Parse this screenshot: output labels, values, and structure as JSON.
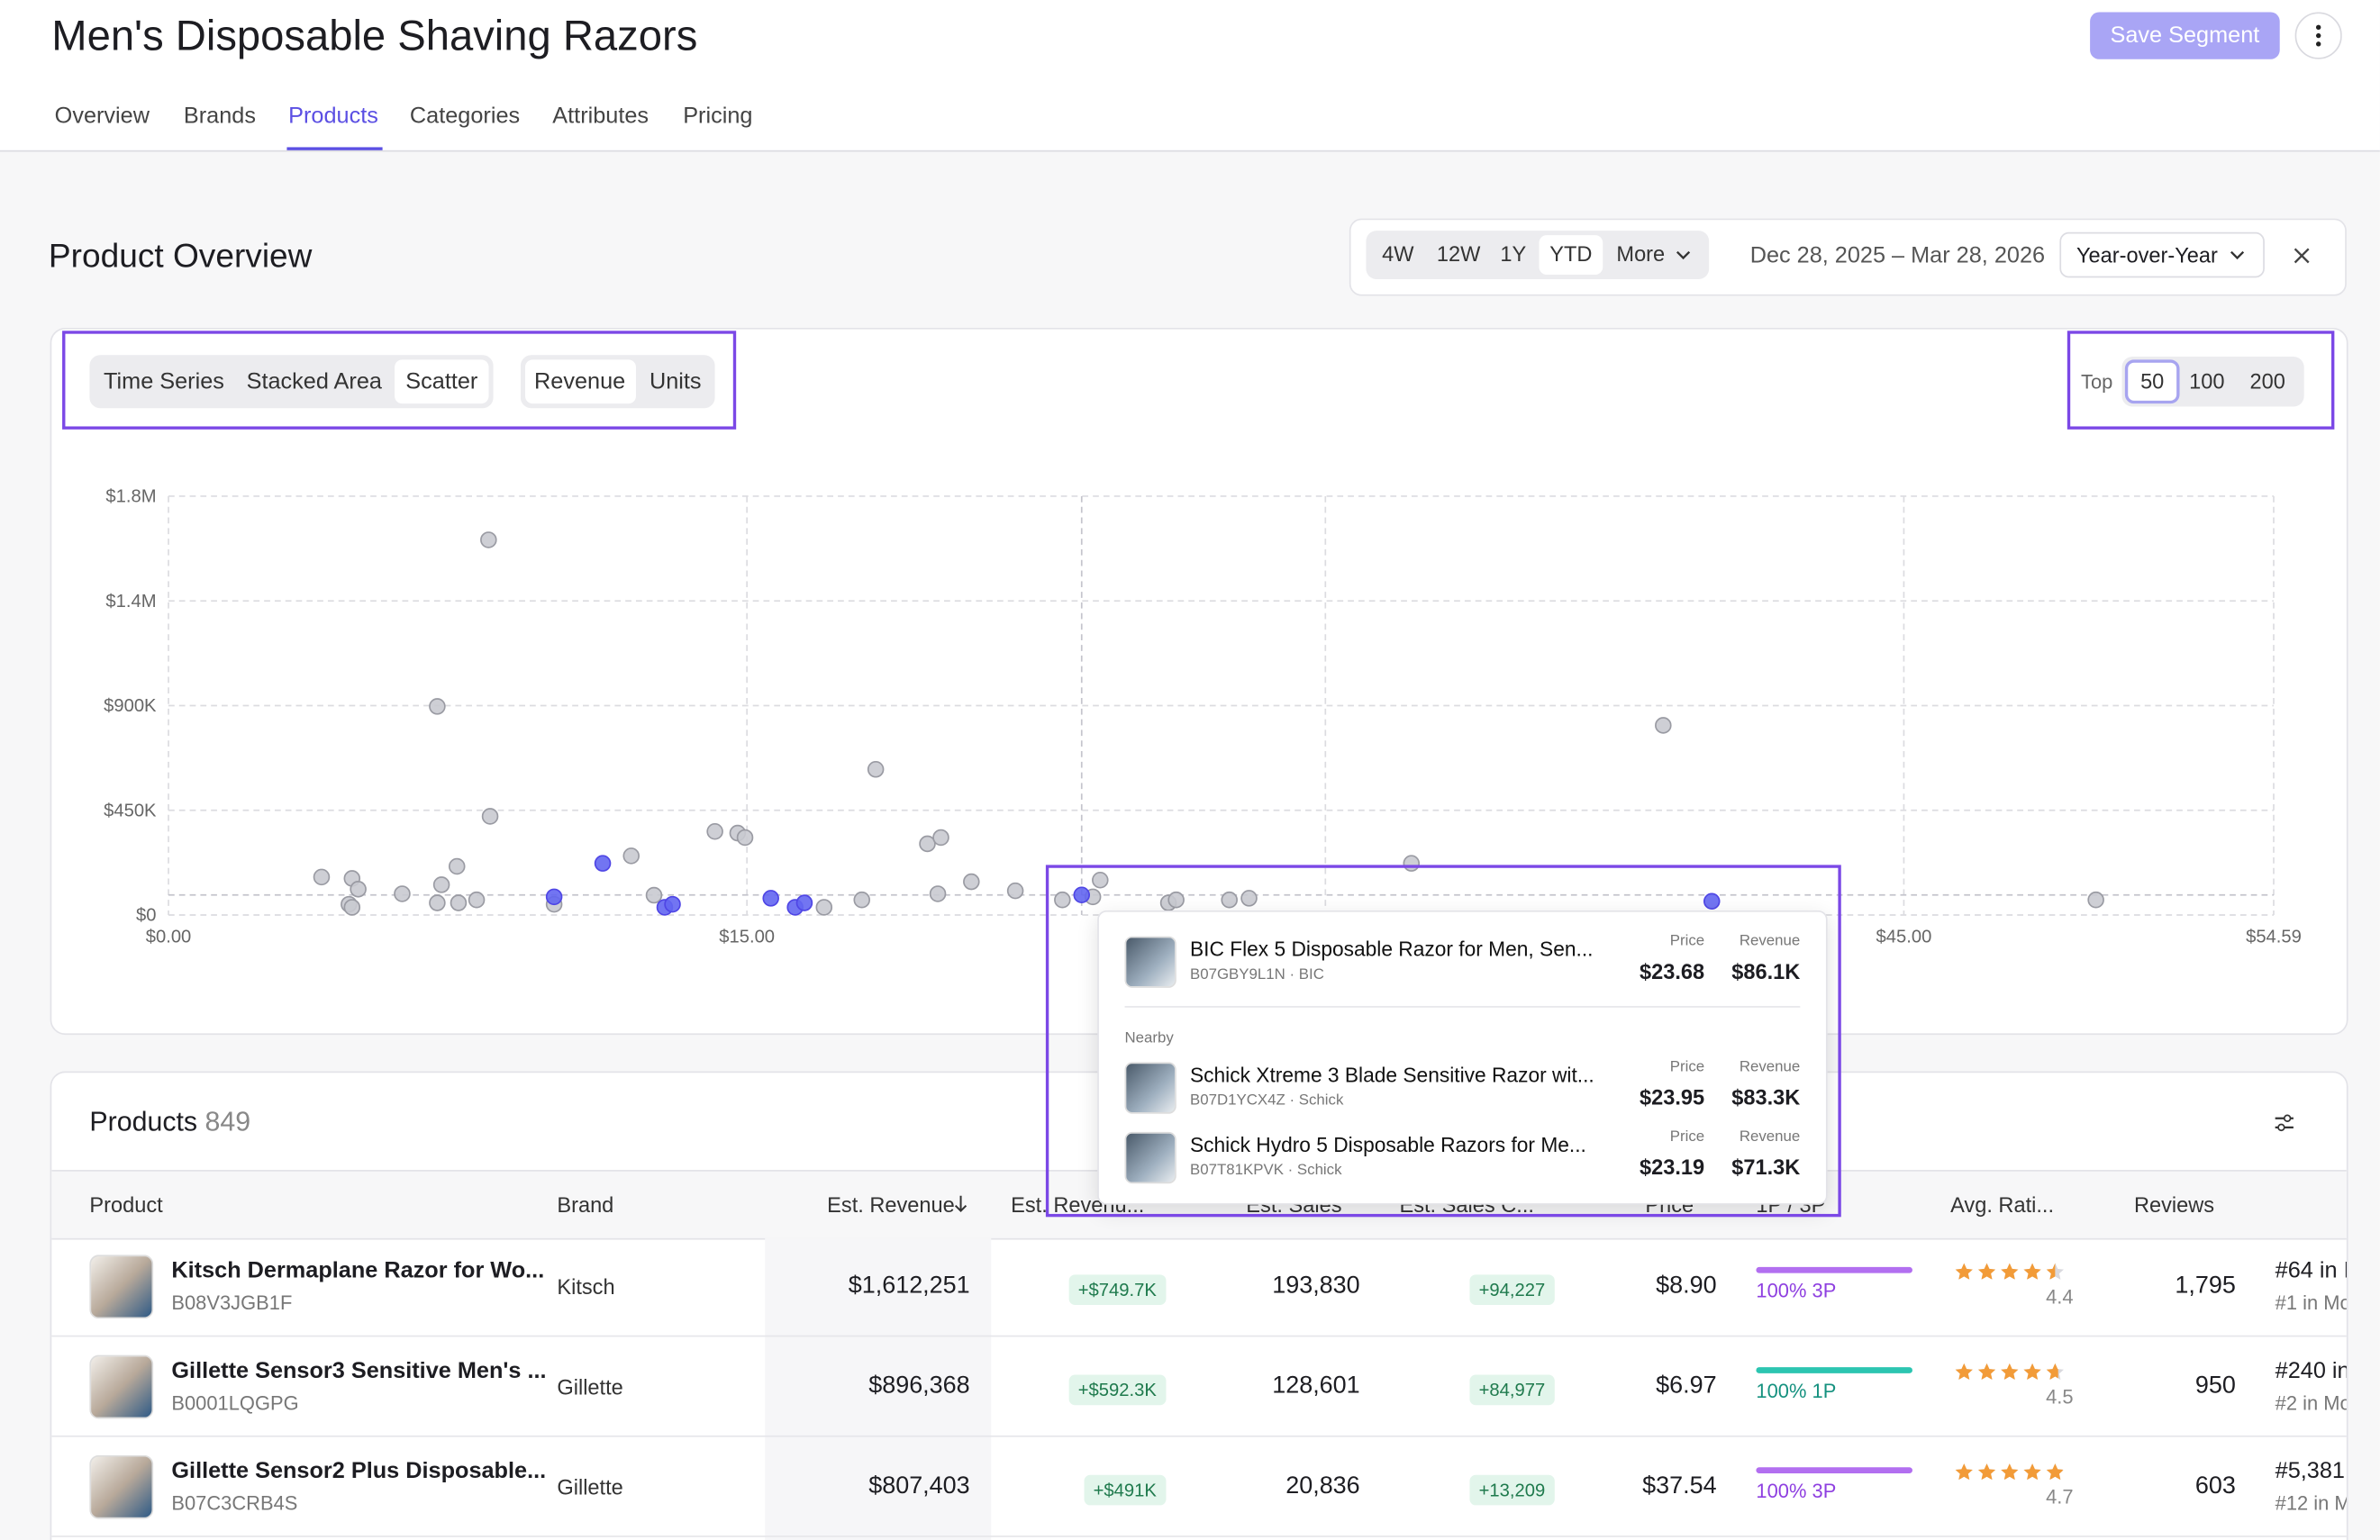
{
  "header": {
    "title": "Men's Disposable Shaving Razors",
    "save_button": "Save Segment"
  },
  "tabs": [
    "Overview",
    "Brands",
    "Products",
    "Categories",
    "Attributes",
    "Pricing"
  ],
  "overview": {
    "title": "Product Overview",
    "ranges": [
      "4W",
      "12W",
      "1Y",
      "YTD",
      "More"
    ],
    "date_range": "Dec 28, 2025 – Mar 28, 2026",
    "comparison": "Year-over-Year"
  },
  "chart_controls": {
    "views": [
      "Time Series",
      "Stacked Area",
      "Scatter"
    ],
    "metrics": [
      "Revenue",
      "Units"
    ],
    "top_label": "Top",
    "top_options": [
      "50",
      "100",
      "200"
    ]
  },
  "chart_data": {
    "type": "scatter",
    "grid": true,
    "xlim": [
      0,
      54.59
    ],
    "xticks": [
      {
        "value": 0,
        "label": "$0.00"
      },
      {
        "value": 15,
        "label": "$15.00"
      },
      {
        "value": 30,
        "label": ""
      },
      {
        "value": 45,
        "label": "$45.00"
      },
      {
        "value": 54.59,
        "label": "$54.59"
      }
    ],
    "ylim": [
      0,
      1800000
    ],
    "yticks": [
      {
        "value": 0,
        "label": "$0"
      },
      {
        "value": 450000,
        "label": "$450K"
      },
      {
        "value": 900000,
        "label": "$900K"
      },
      {
        "value": 1350000,
        "label": "$1.4M"
      },
      {
        "value": 1800000,
        "label": "$1.8M"
      }
    ],
    "series": [
      {
        "color": "#c9cad0",
        "x": [
          3.97,
          4.76,
          4.92,
          4.68,
          4.76,
          6.06,
          6.97,
          7.08,
          7.48,
          6.97,
          7.52,
          7.99,
          8.3,
          8.34,
          10.0,
          12.0,
          12.59,
          14.17,
          14.76,
          14.95,
          17.0,
          17.98,
          18.34,
          19.68,
          20.03,
          19.95,
          20.82,
          21.96,
          23.18,
          23.97,
          24.16,
          25.93,
          26.13,
          27.51,
          28.02,
          32.23,
          38.76,
          49.98
        ],
        "values": [
          163000,
          157000,
          111000,
          46000,
          33000,
          91000,
          896368,
          130000,
          209000,
          52000,
          52000,
          65000,
          1612251,
          424000,
          46000,
          254000,
          85000,
          359000,
          352000,
          333000,
          33000,
          65000,
          626000,
          306000,
          333000,
          91000,
          143000,
          104000,
          65000,
          78000,
          150000,
          52000,
          65000,
          65000,
          72000,
          222000,
          815000,
          65000
        ]
      },
      {
        "color": "#6366f1",
        "x": [
          10.0,
          11.26,
          12.87,
          13.07,
          15.62,
          16.25,
          16.49,
          23.68,
          40.02
        ],
        "values": [
          78000,
          222000,
          33000,
          46000,
          72000,
          33000,
          52000,
          86100,
          59000
        ]
      }
    ]
  },
  "tooltip": {
    "item": {
      "name": "BIC Flex 5 Disposable Razor for Men, Sen...",
      "meta": "B07GBY9L1N · BIC",
      "price_label": "Price",
      "price": "$23.68",
      "revenue_label": "Revenue",
      "revenue": "$86.1K"
    },
    "nearby_label": "Nearby",
    "nearby": [
      {
        "name": "Schick Xtreme 3 Blade Sensitive Razor wit...",
        "meta": "B07D1YCX4Z · Schick",
        "price_label": "Price",
        "price": "$23.95",
        "revenue_label": "Revenue",
        "revenue": "$83.3K"
      },
      {
        "name": "Schick Hydro 5 Disposable Razors for Me...",
        "meta": "B07T81KPVK · Schick",
        "price_label": "Price",
        "price": "$23.19",
        "revenue_label": "Revenue",
        "revenue": "$71.3K"
      }
    ]
  },
  "table": {
    "title": "Products",
    "count": "849",
    "columns": [
      "Product",
      "Brand",
      "Est. Revenue",
      "Est. Revenu...",
      "Est. Sales",
      "Est. Sales C...",
      "Price",
      "1P / 3P",
      "Avg. Rati...",
      "Reviews"
    ],
    "rows": [
      {
        "name": "Kitsch Dermaplane Razor for Wo...",
        "asin": "B08V3JGB1F",
        "brand": "Kitsch",
        "revenue": "$1,612,251",
        "revenue_change": "+$749.7K",
        "sales": "193,830",
        "sales_change": "+94,227",
        "price": "$8.90",
        "fulfillment": "100% 3P",
        "fulfillment_color": "#b26ff0",
        "rating": 4.4,
        "reviews": "1,795",
        "rank_1": "#64 in I",
        "rank_2": "#1 in Mo"
      },
      {
        "name": "Gillette Sensor3 Sensitive Men's ...",
        "asin": "B0001LQGPG",
        "brand": "Gillette",
        "revenue": "$896,368",
        "revenue_change": "+$592.3K",
        "sales": "128,601",
        "sales_change": "+84,977",
        "price": "$6.97",
        "fulfillment": "100% 1P",
        "fulfillment_color": "#2cc5b1",
        "rating": 4.5,
        "reviews": "950",
        "rank_1": "#240 in",
        "rank_2": "#2 in Mo"
      },
      {
        "name": "Gillette Sensor2 Plus Disposable...",
        "asin": "B07C3CRB4S",
        "brand": "Gillette",
        "revenue": "$807,403",
        "revenue_change": "+$491K",
        "sales": "20,836",
        "sales_change": "+13,209",
        "price": "$37.54",
        "fulfillment": "100% 3P",
        "fulfillment_color": "#b26ff0",
        "rating": 4.7,
        "reviews": "603",
        "rank_1": "#5,381",
        "rank_2": "#12 in M"
      }
    ]
  }
}
